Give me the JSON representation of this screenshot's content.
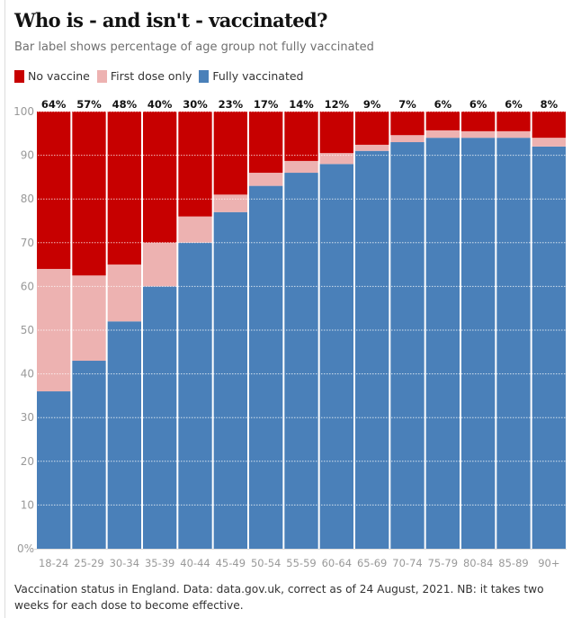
{
  "title": "Who is - and isn't - vaccinated?",
  "subtitle": "Bar label shows percentage of age group not fully vaccinated",
  "legend": [
    {
      "label": "No vaccine",
      "color": "#c70000"
    },
    {
      "label": "First dose only",
      "color": "#edb2b1"
    },
    {
      "label": "Fully vaccinated",
      "color": "#4a80b9"
    }
  ],
  "caption": "Vaccination status in England. Data: data.gov.uk, correct as of 24 August, 2021. NB: it takes two weeks for each dose to become effective.",
  "chart_data": {
    "type": "bar",
    "stacked": true,
    "title": "Who is - and isn't - vaccinated?",
    "subtitle": "Bar label shows percentage of age group not fully vaccinated",
    "xlabel": "",
    "ylabel": "",
    "ylim": [
      0,
      100
    ],
    "yticks": [
      0,
      10,
      20,
      30,
      40,
      50,
      60,
      70,
      80,
      90,
      100
    ],
    "ytick_labels": [
      "0%",
      "10",
      "20",
      "30",
      "40",
      "50",
      "60",
      "70",
      "80",
      "90",
      "100"
    ],
    "grid": true,
    "legend_position": "top-left",
    "categories": [
      "18-24",
      "25-29",
      "30-34",
      "35-39",
      "40-44",
      "45-49",
      "50-54",
      "55-59",
      "60-64",
      "65-69",
      "70-74",
      "75-79",
      "80-84",
      "85-89",
      "90+"
    ],
    "series": [
      {
        "name": "Fully vaccinated",
        "color": "#4a80b9",
        "values": [
          36,
          43,
          52,
          60,
          70,
          77,
          83,
          86,
          88,
          91,
          93,
          94,
          94,
          94,
          92
        ]
      },
      {
        "name": "First dose only",
        "color": "#edb2b1",
        "values": [
          28,
          19.5,
          13,
          10,
          6,
          4,
          3,
          2.7,
          2.5,
          1.4,
          1.6,
          1.7,
          1.5,
          1.5,
          2
        ]
      },
      {
        "name": "No vaccine",
        "color": "#c70000",
        "values": [
          36,
          37.5,
          35,
          30,
          24,
          19,
          14,
          11.3,
          9.5,
          7.6,
          5.4,
          4.3,
          4.5,
          4.5,
          6
        ]
      }
    ],
    "bar_labels": [
      "64%",
      "57%",
      "48%",
      "40%",
      "30%",
      "23%",
      "17%",
      "14%",
      "12%",
      "9%",
      "7%",
      "6%",
      "6%",
      "6%",
      "8%"
    ]
  }
}
